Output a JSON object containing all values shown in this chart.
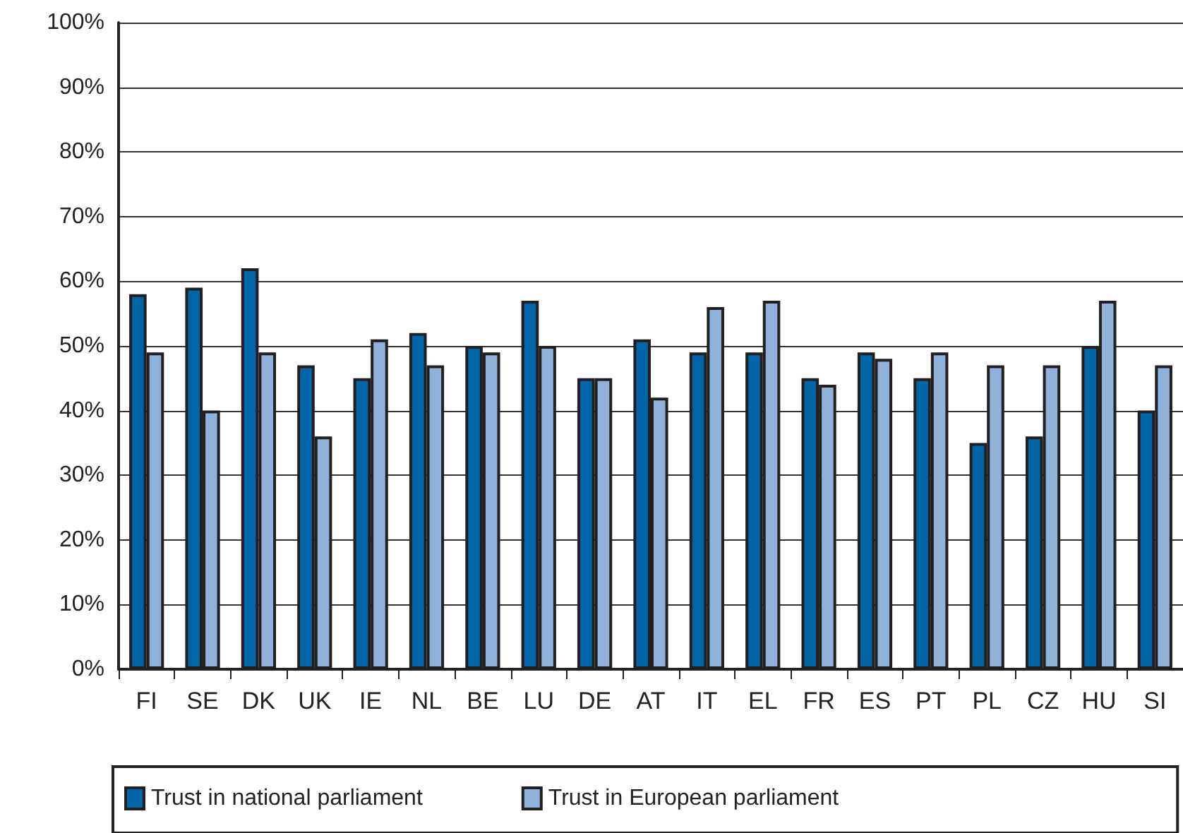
{
  "chart_data": {
    "type": "bar",
    "categories": [
      "FI",
      "SE",
      "DK",
      "UK",
      "IE",
      "NL",
      "BE",
      "LU",
      "DE",
      "AT",
      "IT",
      "EL",
      "FR",
      "ES",
      "PT",
      "PL",
      "CZ",
      "HU",
      "SI"
    ],
    "series": [
      {
        "name": "Trust in national parliament",
        "color": "#0066a8",
        "values": [
          58,
          59,
          62,
          47,
          45,
          52,
          50,
          57,
          45,
          51,
          49,
          49,
          45,
          49,
          45,
          35,
          36,
          50,
          40
        ]
      },
      {
        "name": "Trust in European parliament",
        "color": "#8fb1da",
        "values": [
          49,
          40,
          49,
          36,
          51,
          47,
          49,
          50,
          45,
          42,
          56,
          57,
          44,
          48,
          49,
          47,
          47,
          57,
          47
        ]
      }
    ],
    "ylim": [
      0,
      100
    ],
    "yticks": [
      {
        "value": 0,
        "label": "0%"
      },
      {
        "value": 10,
        "label": "10%"
      },
      {
        "value": 20,
        "label": "20%"
      },
      {
        "value": 30,
        "label": "30%"
      },
      {
        "value": 40,
        "label": "40%"
      },
      {
        "value": 50,
        "label": "50%"
      },
      {
        "value": 60,
        "label": "60%"
      },
      {
        "value": 70,
        "label": "70%"
      },
      {
        "value": 80,
        "label": "80%"
      },
      {
        "value": 90,
        "label": "90%"
      },
      {
        "value": 100,
        "label": "100%"
      }
    ],
    "grid": "y",
    "legend": "bottom left"
  }
}
